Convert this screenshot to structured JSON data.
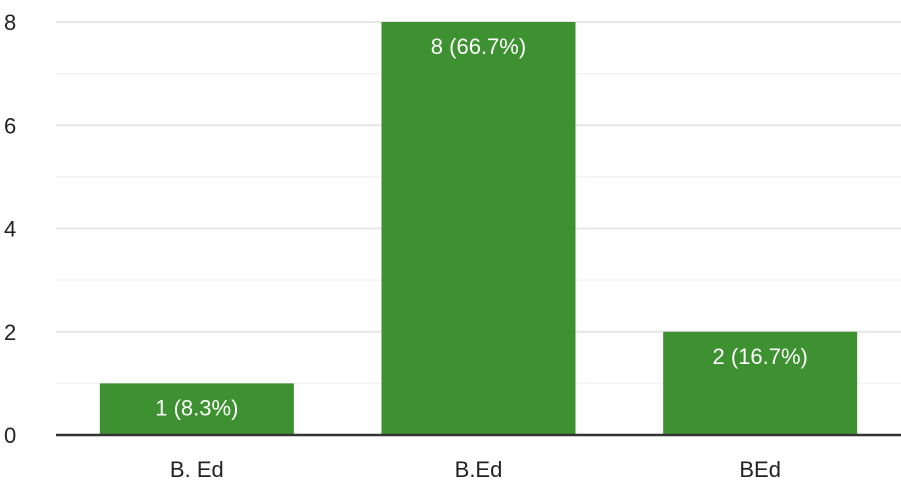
{
  "chart_data": {
    "type": "bar",
    "categories": [
      "B. Ed",
      "B.Ed",
      "BEd"
    ],
    "values": [
      1,
      8,
      2
    ],
    "data_labels": [
      "1 (8.3%)",
      "8 (66.7%)",
      "2 (16.7%)"
    ],
    "yticks": [
      "0",
      "2",
      "4",
      "6",
      "8"
    ],
    "ylim": [
      0,
      8
    ],
    "minor_gridlines": true,
    "grid": true,
    "bar_color": "#3d9130",
    "title": "",
    "xlabel": "",
    "ylabel": ""
  }
}
